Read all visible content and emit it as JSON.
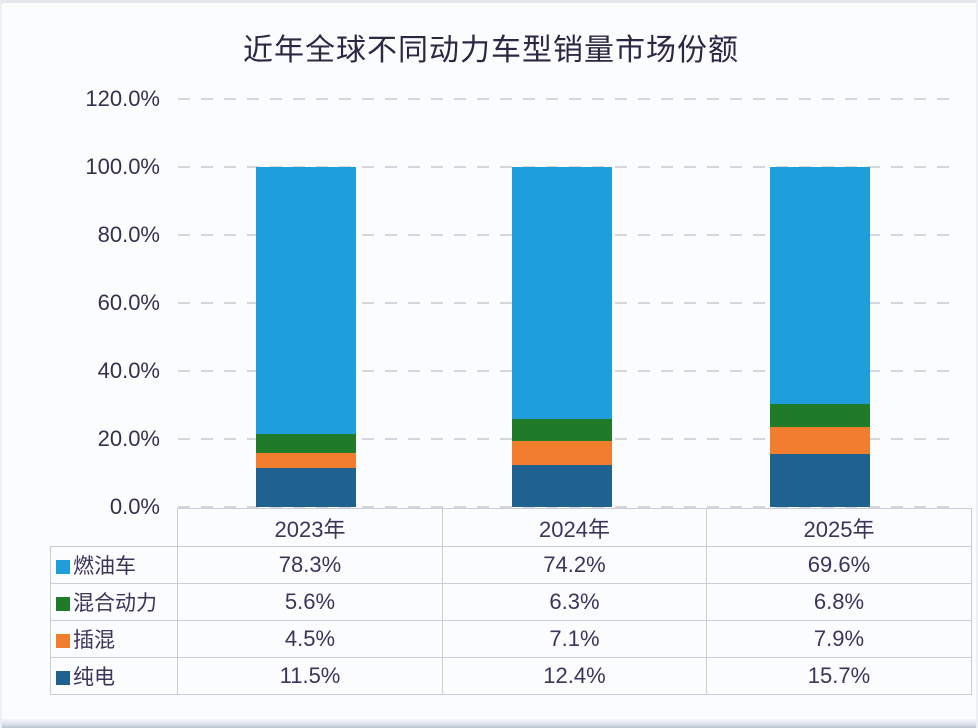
{
  "title": "近年全球不同动力车型销量市场份额",
  "colors": {
    "fuel_blue": "#1E9FDC",
    "hybrid_green": "#1F7B27",
    "phev_orange": "#F07E2E",
    "bev_dark_blue": "#1F628F",
    "grid_line": "#D6D6DA",
    "axis_text": "#35304E",
    "table_text": "#3E3359",
    "table_border": "#C7CDD9",
    "background": "#FBFCFE"
  },
  "chart_data": {
    "type": "bar",
    "stacked": true,
    "title": "近年全球不同动力车型销量市场份额",
    "categories": [
      "2023年",
      "2024年",
      "2025年"
    ],
    "series": [
      {
        "name": "燃油车",
        "color": "#1E9FDC",
        "values": [
          78.3,
          74.2,
          69.6
        ],
        "labels": [
          "78.3%",
          "74.2%",
          "69.6%"
        ]
      },
      {
        "name": "混合动力",
        "color": "#1F7B27",
        "values": [
          5.6,
          6.3,
          6.8
        ],
        "labels": [
          "5.6%",
          "6.3%",
          "6.8%"
        ]
      },
      {
        "name": "插混",
        "color": "#F07E2E",
        "values": [
          4.5,
          7.1,
          7.9
        ],
        "labels": [
          "4.5%",
          "7.1%",
          "7.9%"
        ]
      },
      {
        "name": "纯电",
        "color": "#1F628F",
        "values": [
          11.5,
          12.4,
          15.7
        ],
        "labels": [
          "11.5%",
          "12.4%",
          "15.7%"
        ]
      }
    ],
    "stack_order_bottom_to_top": [
      "纯电",
      "插混",
      "混合动力",
      "燃油车"
    ],
    "xlabel": "",
    "ylabel": "",
    "ylim": [
      0,
      120
    ],
    "yticks": [
      0,
      20,
      40,
      60,
      80,
      100,
      120
    ],
    "ytick_labels": [
      "0.0%",
      "20.0%",
      "40.0%",
      "60.0%",
      "80.0%",
      "100.0%",
      "120.0%"
    ],
    "grid": "horizontal-dashed",
    "legend_position": "table-left-column"
  },
  "table": {
    "corner": "",
    "header": [
      "2023年",
      "2024年",
      "2025年"
    ],
    "rows": [
      {
        "legend": "燃油车",
        "color": "#1E9FDC",
        "values": [
          "78.3%",
          "74.2%",
          "69.6%"
        ]
      },
      {
        "legend": "混合动力",
        "color": "#1F7B27",
        "values": [
          "5.6%",
          "6.3%",
          "6.8%"
        ]
      },
      {
        "legend": "插混",
        "color": "#F07E2E",
        "values": [
          "4.5%",
          "7.1%",
          "7.9%"
        ]
      },
      {
        "legend": "纯电",
        "color": "#1F628F",
        "values": [
          "11.5%",
          "12.4%",
          "15.7%"
        ]
      }
    ]
  }
}
